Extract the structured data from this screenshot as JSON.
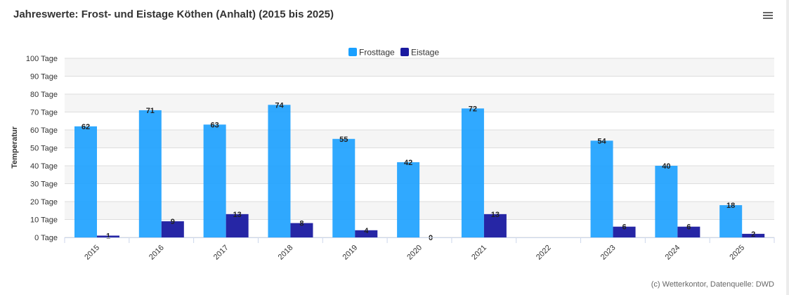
{
  "header": {
    "title": "Jahreswerte: Frost- und Eistage Köthen (Anhalt) (2015 bis 2025)",
    "menu_icon": "hamburger-menu-icon"
  },
  "chart_data": {
    "type": "bar",
    "title": "Jahreswerte: Frost- und Eistage Köthen (Anhalt) (2015 bis 2025)",
    "xlabel": "",
    "ylabel": "Temperatur",
    "ylim": [
      0,
      100
    ],
    "ytick_step": 10,
    "ytick_suffix": " Tage",
    "grid": true,
    "legend_position": "top-center",
    "categories": [
      "2015",
      "2016",
      "2017",
      "2018",
      "2019",
      "2020",
      "2021",
      "2022",
      "2023",
      "2024",
      "2025"
    ],
    "series": [
      {
        "name": "Frosttage",
        "color": "#1aa0ff",
        "values": [
          62,
          71,
          63,
          74,
          55,
          42,
          72,
          null,
          54,
          40,
          18
        ]
      },
      {
        "name": "Eistage",
        "color": "#1a1aa0",
        "values": [
          1,
          9,
          13,
          8,
          4,
          0,
          13,
          null,
          6,
          6,
          2
        ]
      }
    ]
  },
  "credits": "(c) Wetterkontor, Datenquelle: DWD"
}
